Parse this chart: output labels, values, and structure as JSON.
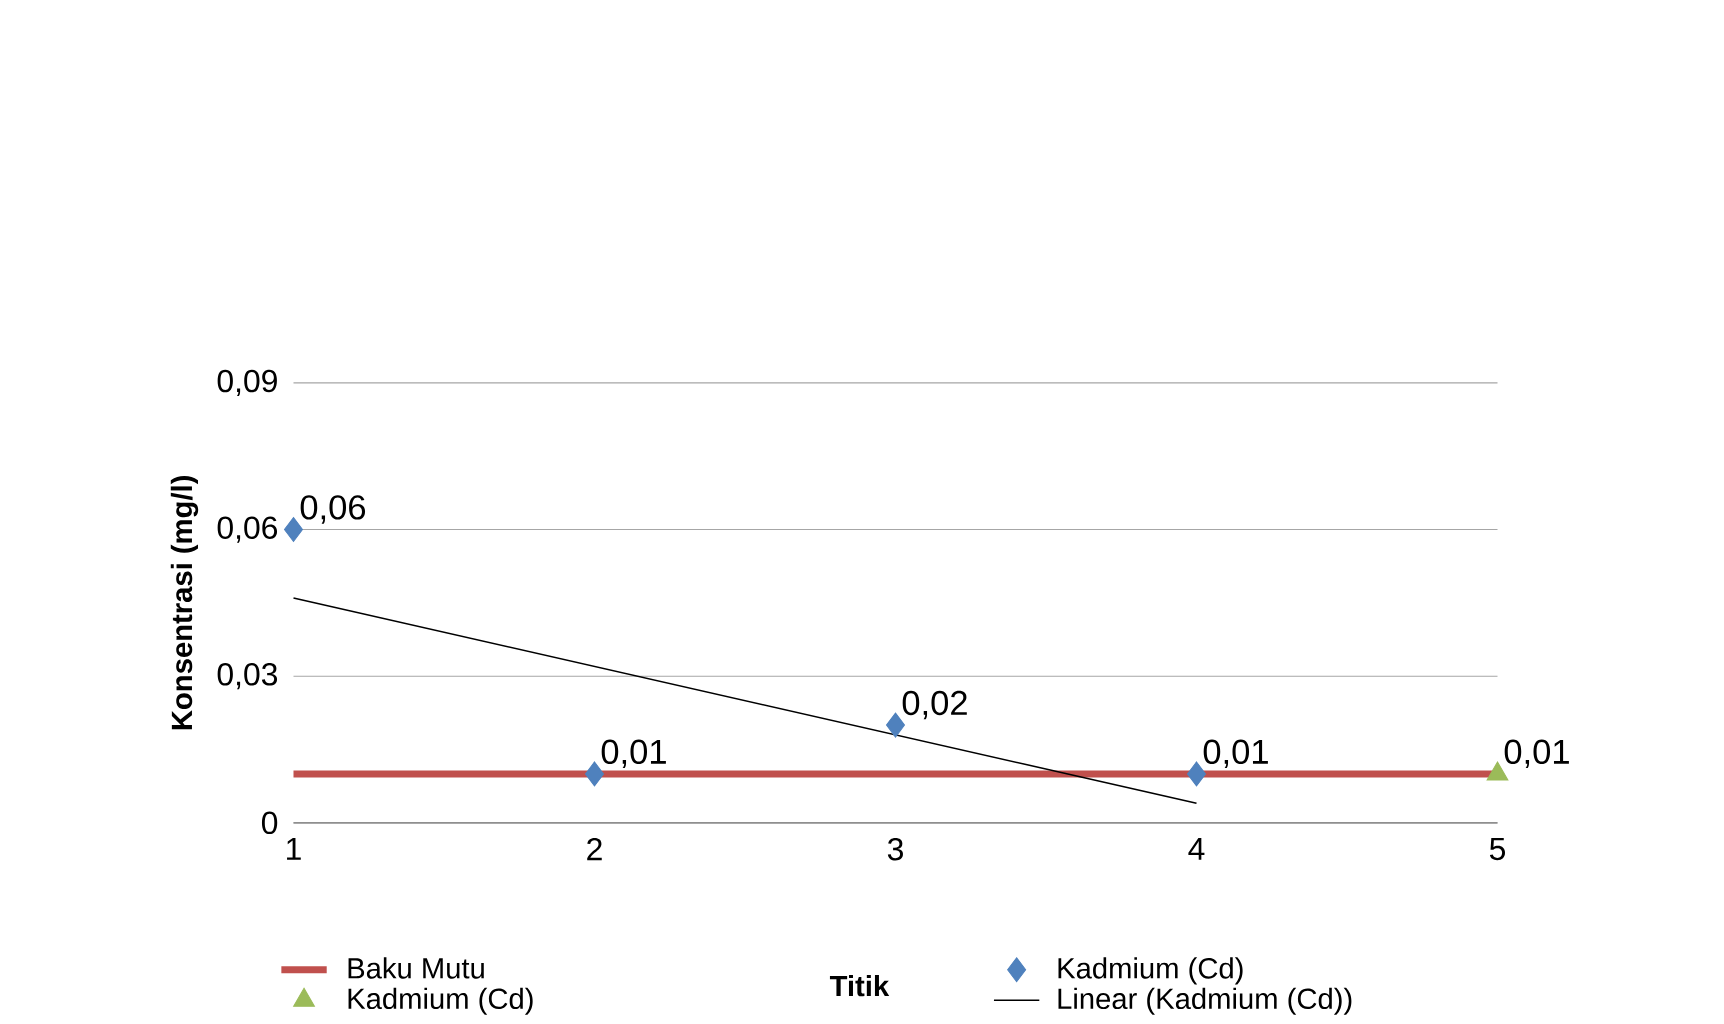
{
  "chart_data": {
    "type": "scatter",
    "xlabel": "Titik",
    "ylabel": "Konsentrasi (mg/l)",
    "xlim": [
      1,
      5
    ],
    "xticks": [
      1,
      2,
      3,
      4,
      5
    ],
    "ylim": [
      0,
      0.09
    ],
    "yticks": [
      0,
      {
        "value": 0.03,
        "label": "0,03"
      },
      {
        "value": 0.06,
        "label": "0,06"
      },
      {
        "value": 0.09,
        "label": "0,09"
      }
    ],
    "grid": "y",
    "legend": "bottom",
    "series": [
      {
        "name": "Baku Mutu",
        "type": "line",
        "color": "#c0504d",
        "marker": "none",
        "line_style": "solid",
        "x": [
          1,
          2,
          3,
          4,
          5
        ],
        "values": [
          0.01,
          0.01,
          0.01,
          0.01,
          0.01
        ]
      },
      {
        "name": "Kadmium (Cd)",
        "type": "scatter",
        "color": "#4f81bd",
        "marker": "diamond",
        "x": [
          1,
          2,
          3,
          4
        ],
        "values": [
          0.06,
          0.01,
          0.02,
          0.01
        ],
        "value_labels": [
          "0,06",
          "0,01",
          "0,02",
          "0,01"
        ]
      },
      {
        "name": "Kadmium (Cd)",
        "type": "scatter",
        "color": "#9bbb59",
        "marker": "triangle",
        "x": [
          5
        ],
        "values": [
          0.01
        ],
        "value_labels": [
          "0,01"
        ]
      },
      {
        "name": "Linear (Kadmium (Cd))",
        "type": "line",
        "color": "#000000",
        "marker": "none",
        "line_style": "solid",
        "x": [
          1,
          4
        ],
        "values": [
          0.046,
          0.004
        ]
      }
    ]
  }
}
